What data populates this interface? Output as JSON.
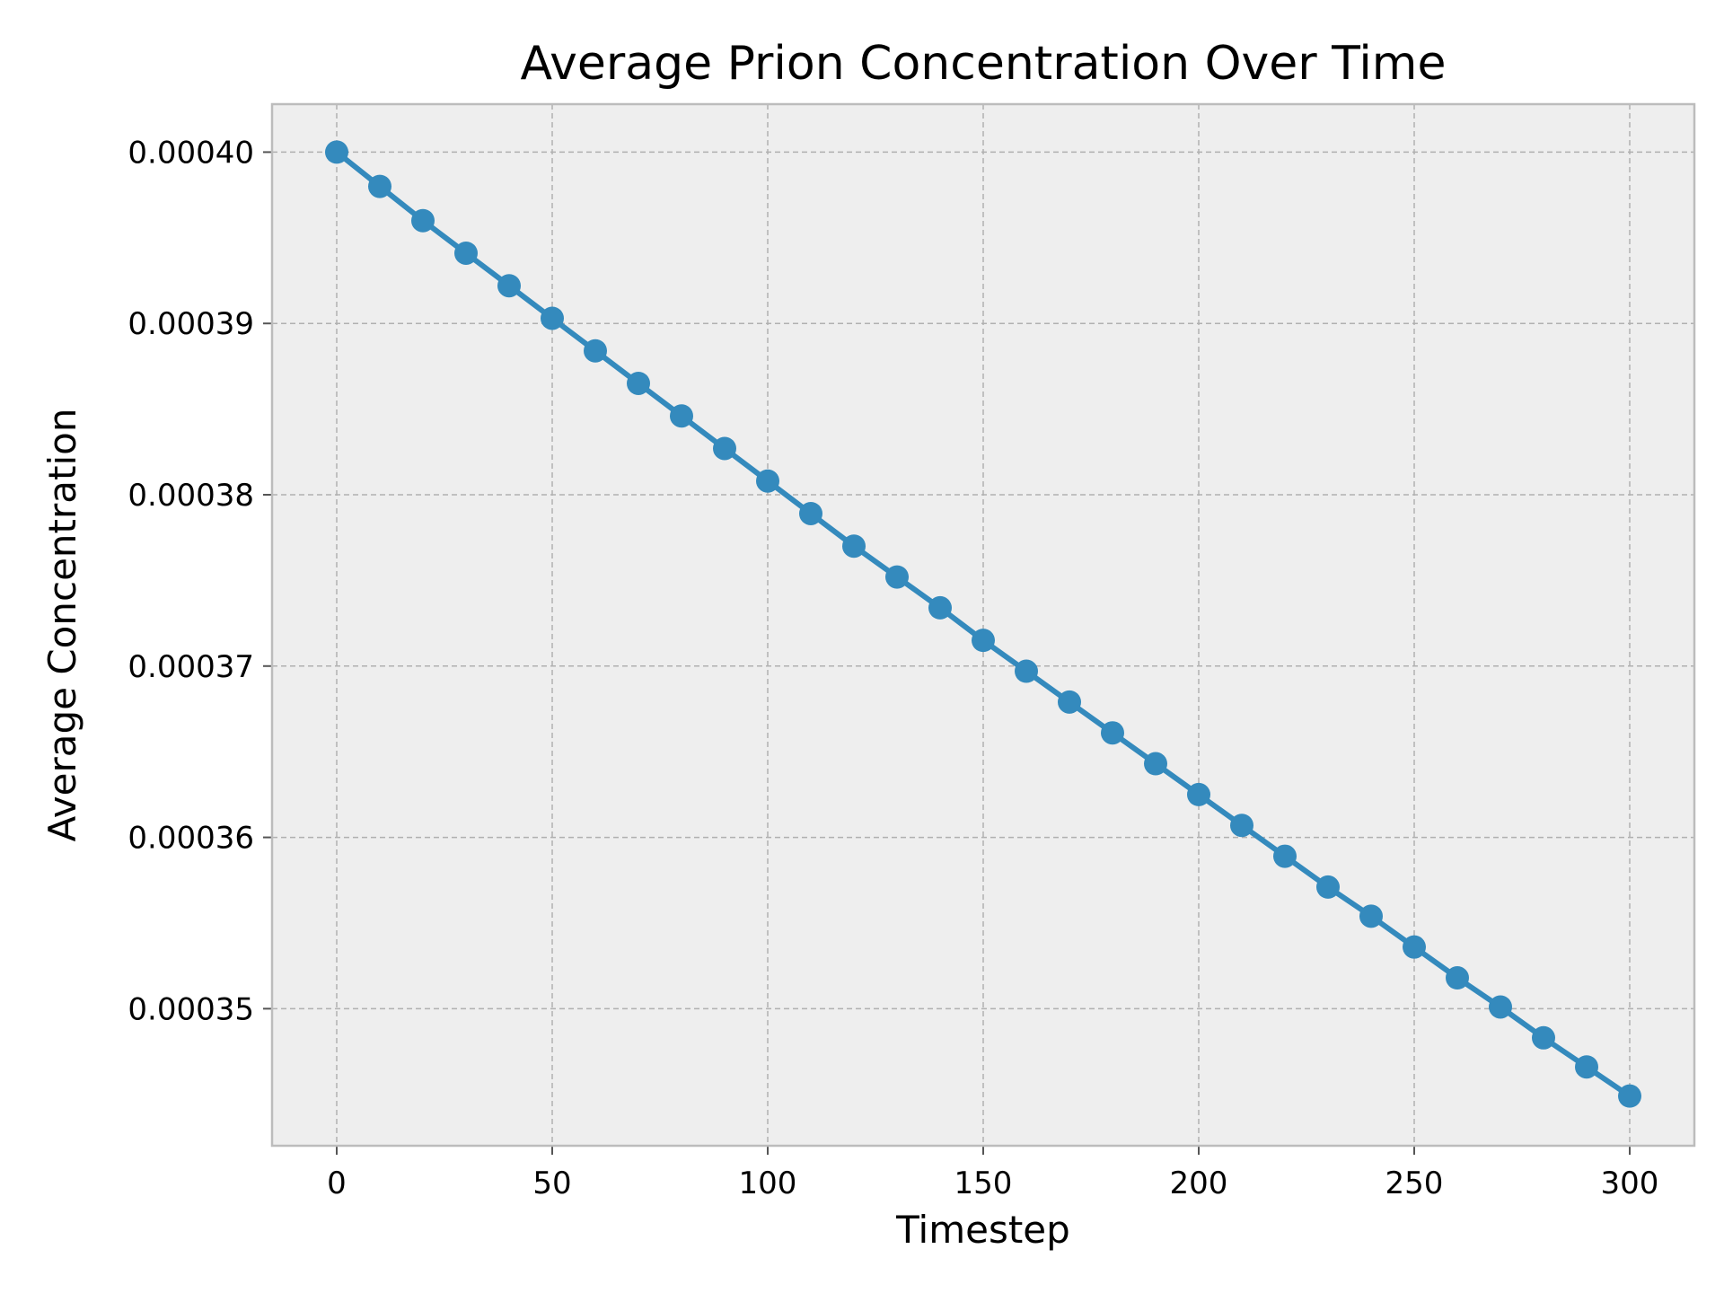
{
  "chart_data": {
    "type": "line",
    "title": "Average Prion Concentration Over Time",
    "xlabel": "Timestep",
    "ylabel": "Average Concentration",
    "xlim": [
      -15,
      315
    ],
    "ylim": [
      0.000342,
      0.0004028
    ],
    "xticks": [
      0,
      50,
      100,
      150,
      200,
      250,
      300
    ],
    "xtick_labels": [
      "0",
      "50",
      "100",
      "150",
      "200",
      "250",
      "300"
    ],
    "yticks": [
      0.00035,
      0.00036,
      0.00037,
      0.00038,
      0.00039,
      0.0004
    ],
    "ytick_labels": [
      "0.00035",
      "0.00036",
      "0.00037",
      "0.00038",
      "0.00039",
      "0.00040"
    ],
    "grid": true,
    "colors": {
      "line": "#348abd",
      "plot_background": "#eeeeee",
      "grid": "#b0b0b0",
      "frame": "#bcbcbc"
    },
    "series": [
      {
        "x": [
          0,
          10,
          20,
          30,
          40,
          50,
          60,
          70,
          80,
          90,
          100,
          110,
          120,
          130,
          140,
          150,
          160,
          170,
          180,
          190,
          200,
          210,
          220,
          230,
          240,
          250,
          260,
          270,
          280,
          290,
          300
        ],
        "values": [
          0.0004,
          0.000398,
          0.000396,
          0.0003941,
          0.0003922,
          0.0003903,
          0.0003884,
          0.0003865,
          0.0003846,
          0.0003827,
          0.0003808,
          0.0003789,
          0.000377,
          0.0003752,
          0.0003734,
          0.0003715,
          0.0003697,
          0.0003679,
          0.0003661,
          0.0003643,
          0.0003625,
          0.0003607,
          0.0003589,
          0.0003571,
          0.0003554,
          0.0003536,
          0.0003518,
          0.0003501,
          0.0003483,
          0.0003466,
          0.0003449
        ]
      }
    ]
  }
}
